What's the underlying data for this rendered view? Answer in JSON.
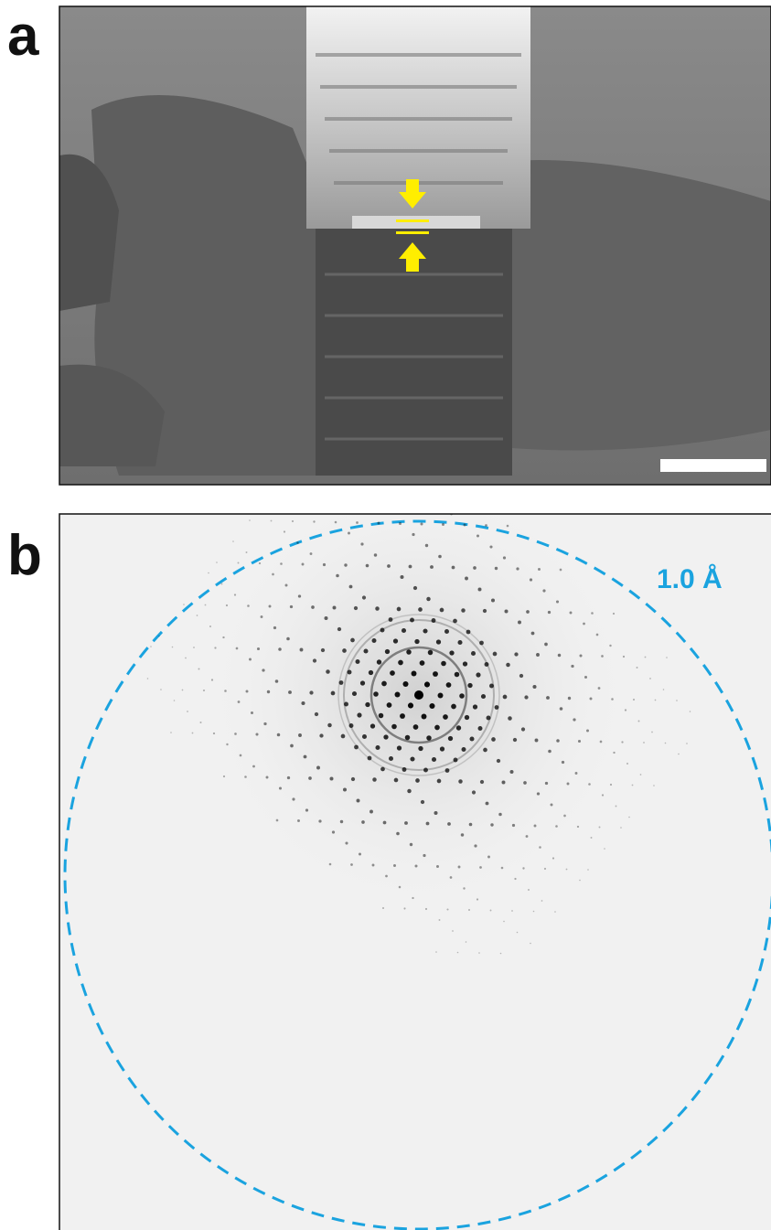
{
  "panels": [
    {
      "label": "a"
    },
    {
      "label": "b",
      "annotation": "1.0 Å"
    }
  ]
}
